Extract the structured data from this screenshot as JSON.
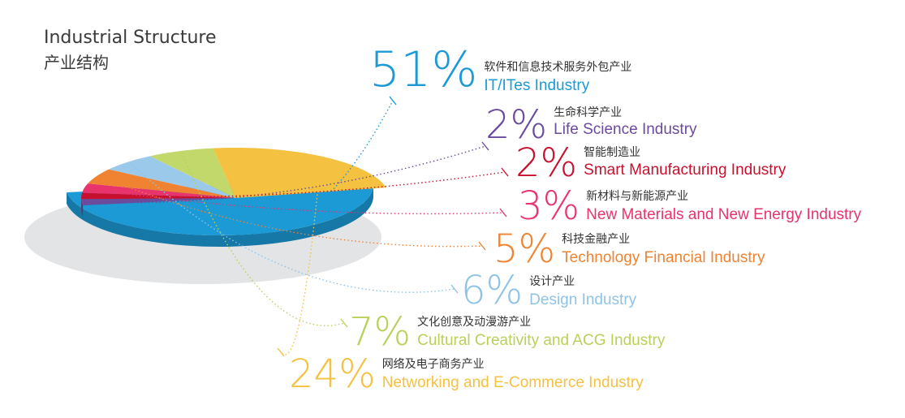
{
  "title": {
    "en": "Industrial Structure",
    "cn": "产业结构"
  },
  "chart_data": {
    "type": "pie",
    "unit": "%",
    "slices": [
      {
        "pct": "51%",
        "value": 51,
        "cn": "软件和信息技术服务外包产业",
        "en": "IT/ITes Industry",
        "color": "#1b9ad6",
        "label_color": "#1b9ad6"
      },
      {
        "pct": "2%",
        "value": 2,
        "cn": "生命科学产业",
        "en": "Life Science Industry",
        "color": "#6a4b9c",
        "label_color": "#6a4b9c"
      },
      {
        "pct": "2%",
        "value": 2,
        "cn": "智能制造业",
        "en": "Smart Manufacturing Industry",
        "color": "#c8102e",
        "label_color": "#c8102e"
      },
      {
        "pct": "3%",
        "value": 3,
        "cn": "新材料与新能源产业",
        "en": "New Materials and New Energy Industry",
        "color": "#e8336d",
        "label_color": "#e8336d"
      },
      {
        "pct": "5%",
        "value": 5,
        "cn": "科技金融产业",
        "en": "Technology Financial Industry",
        "color": "#ef8332",
        "label_color": "#ef8332"
      },
      {
        "pct": "6%",
        "value": 6,
        "cn": "设计产业",
        "en": "Design Industry",
        "color": "#9ac9ea",
        "label_color": "#8fc3e6"
      },
      {
        "pct": "7%",
        "value": 7,
        "cn": "文化创意及动漫游产业",
        "en": "Cultural Creativity and ACG Industry",
        "color": "#c3d86a",
        "label_color": "#b7d15a"
      },
      {
        "pct": "24%",
        "value": 24,
        "cn": "网络及电子商务产业",
        "en": "Networking and E-Commerce Industry",
        "color": "#f4c141",
        "label_color": "#f4c141"
      }
    ]
  }
}
